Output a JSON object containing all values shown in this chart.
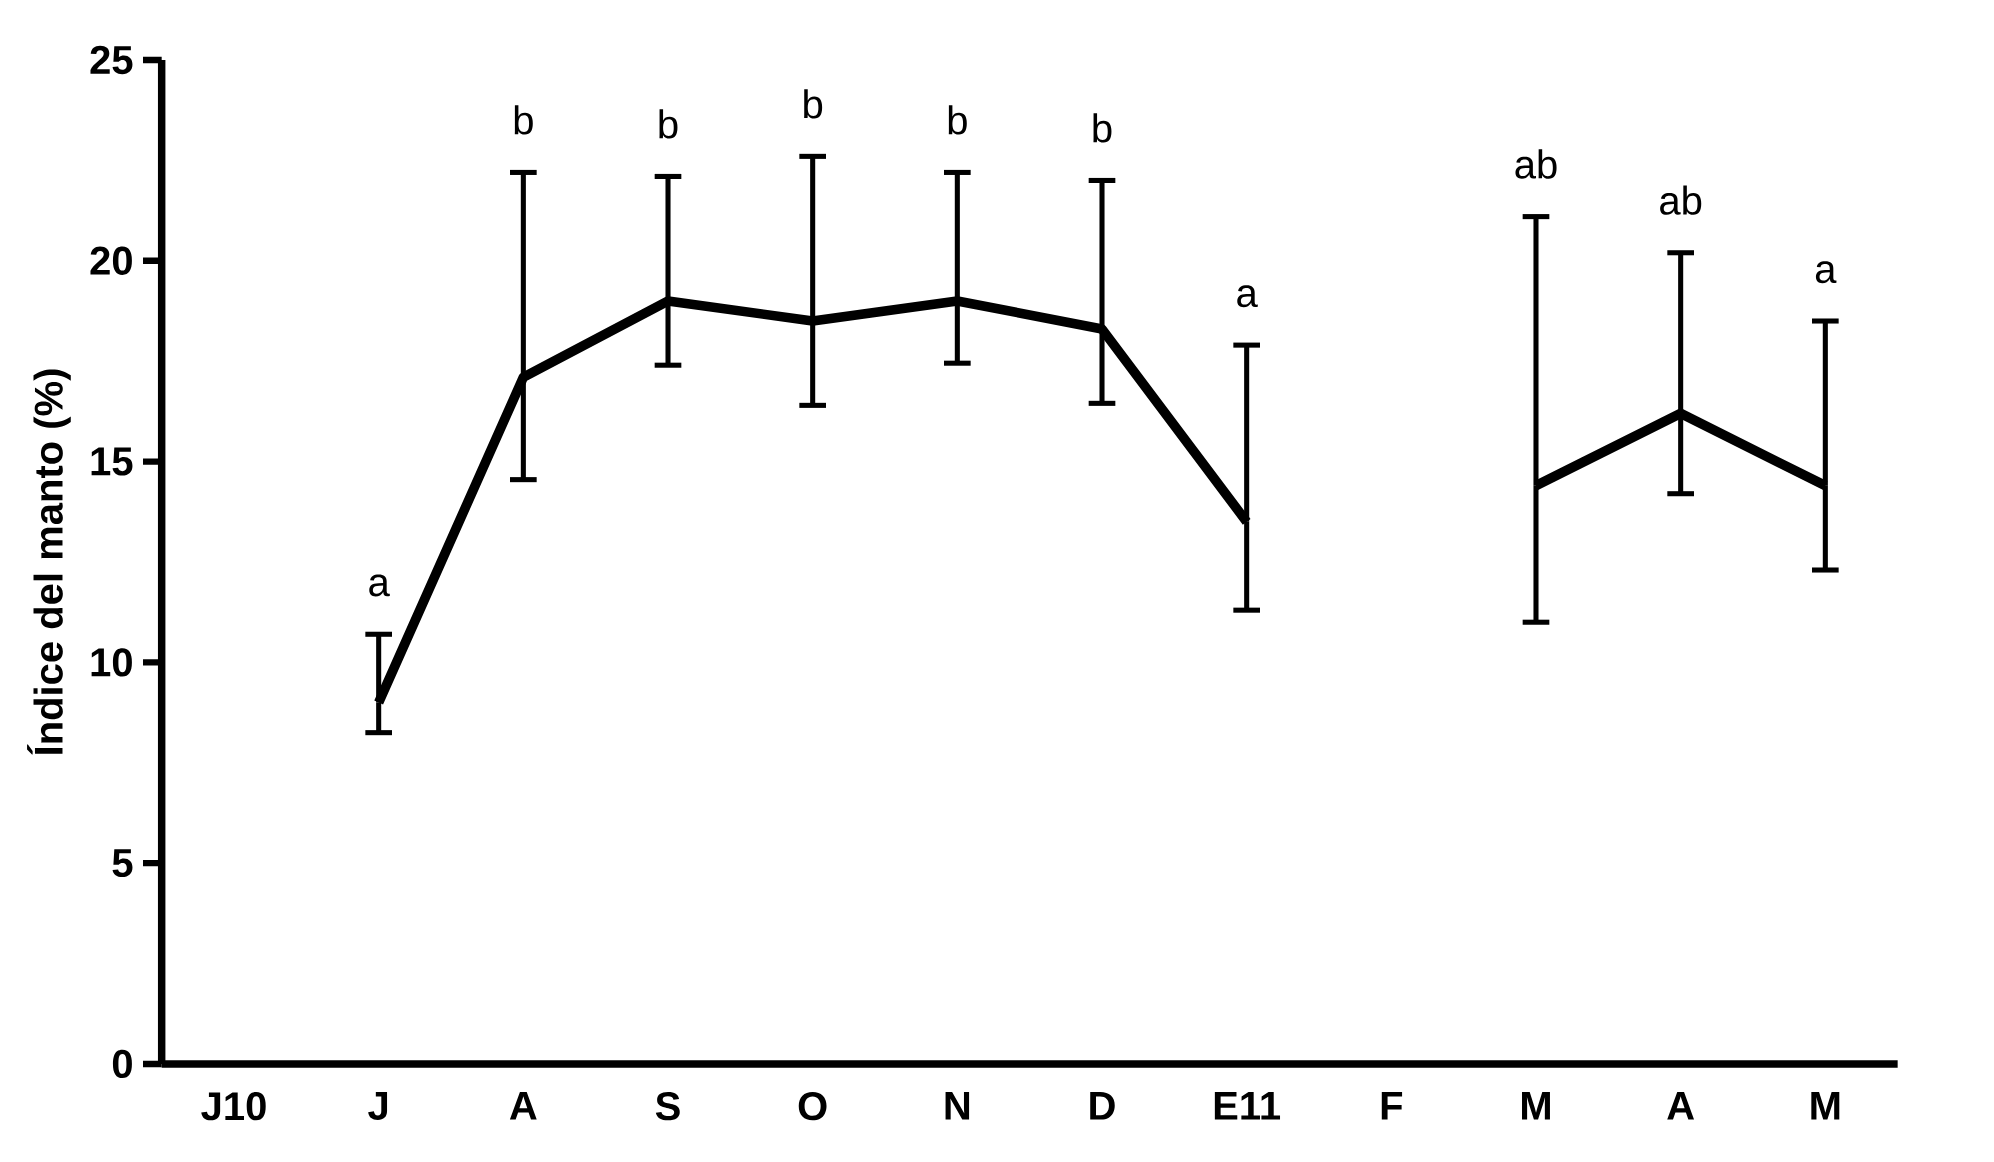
{
  "chart_data": {
    "type": "line",
    "ylabel": "Índice del manto (%)",
    "categories": [
      "J10",
      "J",
      "A",
      "S",
      "O",
      "N",
      "D",
      "E11",
      "F",
      "M",
      "A",
      "M"
    ],
    "series": [
      {
        "color": "#000000",
        "values": [
          null,
          9.0,
          17.1,
          19.0,
          18.5,
          19.0,
          18.3,
          13.5,
          null,
          14.4,
          16.2,
          14.4
        ],
        "errors": [
          null,
          [
            8.25,
            10.7
          ],
          [
            14.55,
            22.2
          ],
          [
            17.4,
            22.1
          ],
          [
            16.4,
            22.6
          ],
          [
            17.45,
            22.2
          ],
          [
            16.45,
            22.0
          ],
          [
            11.3,
            17.9
          ],
          null,
          [
            11.0,
            21.1
          ],
          [
            14.2,
            20.2
          ],
          [
            12.3,
            18.5
          ]
        ]
      }
    ],
    "ylim": [
      0,
      25
    ],
    "yticks": [
      0,
      5,
      10,
      15,
      20,
      25
    ],
    "marker": "none",
    "line_style": "solid",
    "annotations": [
      "a",
      "b",
      "b",
      "b",
      "b",
      "b",
      "a",
      "ab",
      "ab",
      "a"
    ]
  }
}
